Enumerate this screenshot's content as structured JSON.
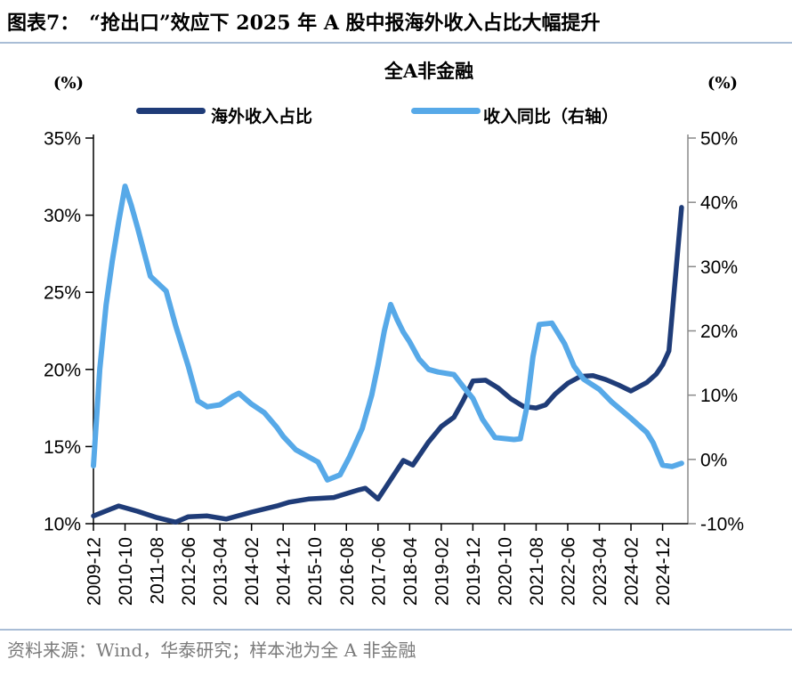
{
  "header": {
    "title": "图表7：　“抢出口”效应下 2025 年 A 股中报海外收入占比大幅提升"
  },
  "chart": {
    "subtitle": "全A非金融",
    "left_axis_unit": "(%)",
    "right_axis_unit": "(%)",
    "legend": [
      {
        "label": "海外收入占比",
        "color": "#1f3c78"
      },
      {
        "label": "收入同比（右轴）",
        "color": "#57a9e8"
      }
    ]
  },
  "footer": {
    "source": "资料来源：Wind，华泰研究；样本池为全 A 非金融"
  },
  "colors": {
    "series_dark_navy": "#1f3c78",
    "series_light_blue": "#57a9e8",
    "divider_rule": "#a9bdd6",
    "axis_black": "#000000",
    "right_axis_gray": "#8a8a8a",
    "footer_gray": "#7a7a7a"
  },
  "chart_data": {
    "type": "line",
    "title": "全A非金融",
    "grid": false,
    "legend_position": "top",
    "x_tick_labels": [
      "2009-12",
      "2010-10",
      "2011-08",
      "2012-06",
      "2013-04",
      "2014-02",
      "2014-12",
      "2015-10",
      "2016-08",
      "2017-06",
      "2018-04",
      "2019-02",
      "2019-12",
      "2020-10",
      "2021-08",
      "2022-06",
      "2023-04",
      "2024-02",
      "2024-12"
    ],
    "x_tick_interval_months": 10,
    "x_total_months": 188,
    "left_axis": {
      "label": "(%)",
      "min": 10,
      "max": 35,
      "ticks": [
        35,
        30,
        25,
        20,
        15,
        10
      ],
      "tick_labels": [
        "35%",
        "30%",
        "25%",
        "20%",
        "15%",
        "10%"
      ]
    },
    "right_axis": {
      "label": "(%)",
      "min": -10,
      "max": 50,
      "ticks": [
        50,
        40,
        30,
        20,
        10,
        0,
        -10
      ],
      "tick_labels": [
        "50%",
        "40%",
        "30%",
        "20%",
        "10%",
        "0%",
        "-10%"
      ]
    },
    "series": [
      {
        "name": "海外收入占比",
        "axis": "left",
        "color": "#1f3c78",
        "stroke_width": 5.5,
        "points": [
          [
            "2009-12",
            10.5
          ],
          [
            "2010-08",
            11.15
          ],
          [
            "2011-02",
            10.8
          ],
          [
            "2011-08",
            10.4
          ],
          [
            "2012-02",
            10.1
          ],
          [
            "2012-06",
            10.45
          ],
          [
            "2012-12",
            10.5
          ],
          [
            "2013-06",
            10.3
          ],
          [
            "2014-02",
            10.75
          ],
          [
            "2014-10",
            11.15
          ],
          [
            "2015-02",
            11.4
          ],
          [
            "2015-08",
            11.6
          ],
          [
            "2016-04",
            11.7
          ],
          [
            "2016-12",
            12.2
          ],
          [
            "2017-02",
            12.3
          ],
          [
            "2017-06",
            11.6
          ],
          [
            "2018-02",
            14.1
          ],
          [
            "2018-05",
            13.8
          ],
          [
            "2018-10",
            15.3
          ],
          [
            "2019-02",
            16.3
          ],
          [
            "2019-06",
            16.9
          ],
          [
            "2019-09",
            18.0
          ],
          [
            "2019-12",
            19.25
          ],
          [
            "2020-04",
            19.3
          ],
          [
            "2020-08",
            18.8
          ],
          [
            "2020-12",
            18.1
          ],
          [
            "2021-04",
            17.6
          ],
          [
            "2021-08",
            17.5
          ],
          [
            "2021-11",
            17.7
          ],
          [
            "2022-02",
            18.4
          ],
          [
            "2022-06",
            19.1
          ],
          [
            "2022-10",
            19.55
          ],
          [
            "2023-02",
            19.6
          ],
          [
            "2023-06",
            19.35
          ],
          [
            "2023-10",
            19.0
          ],
          [
            "2024-02",
            18.6
          ],
          [
            "2024-07",
            19.15
          ],
          [
            "2024-10",
            19.7
          ],
          [
            "2024-12",
            20.3
          ],
          [
            "2025-02",
            21.2
          ],
          [
            "2025-06",
            30.5
          ]
        ]
      },
      {
        "name": "收入同比（右轴）",
        "axis": "right",
        "color": "#57a9e8",
        "stroke_width": 6,
        "points": [
          [
            "2009-12",
            -1.0
          ],
          [
            "2010-02",
            14.0
          ],
          [
            "2010-04",
            24.0
          ],
          [
            "2010-06",
            31.0
          ],
          [
            "2010-08",
            37.0
          ],
          [
            "2010-10",
            42.5
          ],
          [
            "2010-12",
            39.5
          ],
          [
            "2011-02",
            36.0
          ],
          [
            "2011-06",
            28.5
          ],
          [
            "2011-11",
            26.2
          ],
          [
            "2012-02",
            20.8
          ],
          [
            "2012-06",
            14.5
          ],
          [
            "2012-09",
            9.1
          ],
          [
            "2012-12",
            8.2
          ],
          [
            "2013-04",
            8.5
          ],
          [
            "2013-08",
            9.8
          ],
          [
            "2013-10",
            10.3
          ],
          [
            "2014-02",
            8.6
          ],
          [
            "2014-06",
            7.3
          ],
          [
            "2014-10",
            5.0
          ],
          [
            "2014-12",
            3.6
          ],
          [
            "2015-04",
            1.5
          ],
          [
            "2015-08",
            0.4
          ],
          [
            "2015-11",
            -0.4
          ],
          [
            "2016-02",
            -3.2
          ],
          [
            "2016-06",
            -2.4
          ],
          [
            "2016-09",
            0.4
          ],
          [
            "2017-01",
            4.8
          ],
          [
            "2017-04",
            10.0
          ],
          [
            "2017-06",
            14.7
          ],
          [
            "2017-08",
            20.0
          ],
          [
            "2017-10",
            24.1
          ],
          [
            "2017-12",
            21.8
          ],
          [
            "2018-02",
            19.8
          ],
          [
            "2018-04",
            18.3
          ],
          [
            "2018-07",
            15.6
          ],
          [
            "2018-10",
            14.0
          ],
          [
            "2019-01",
            13.6
          ],
          [
            "2019-06",
            13.2
          ],
          [
            "2019-09",
            11.3
          ],
          [
            "2019-12",
            9.5
          ],
          [
            "2020-03",
            6.3
          ],
          [
            "2020-07",
            3.4
          ],
          [
            "2021-01",
            3.1
          ],
          [
            "2021-03",
            3.2
          ],
          [
            "2021-05",
            8.0
          ],
          [
            "2021-07",
            16.0
          ],
          [
            "2021-09",
            21.0
          ],
          [
            "2022-01",
            21.2
          ],
          [
            "2022-05",
            18.0
          ],
          [
            "2022-08",
            14.5
          ],
          [
            "2022-11",
            12.5
          ],
          [
            "2023-04",
            10.9
          ],
          [
            "2023-08",
            8.9
          ],
          [
            "2024-02",
            6.4
          ],
          [
            "2024-07",
            4.2
          ],
          [
            "2024-09",
            2.6
          ],
          [
            "2024-12",
            -0.9
          ],
          [
            "2025-03",
            -1.1
          ],
          [
            "2025-06",
            -0.6
          ]
        ]
      }
    ]
  }
}
